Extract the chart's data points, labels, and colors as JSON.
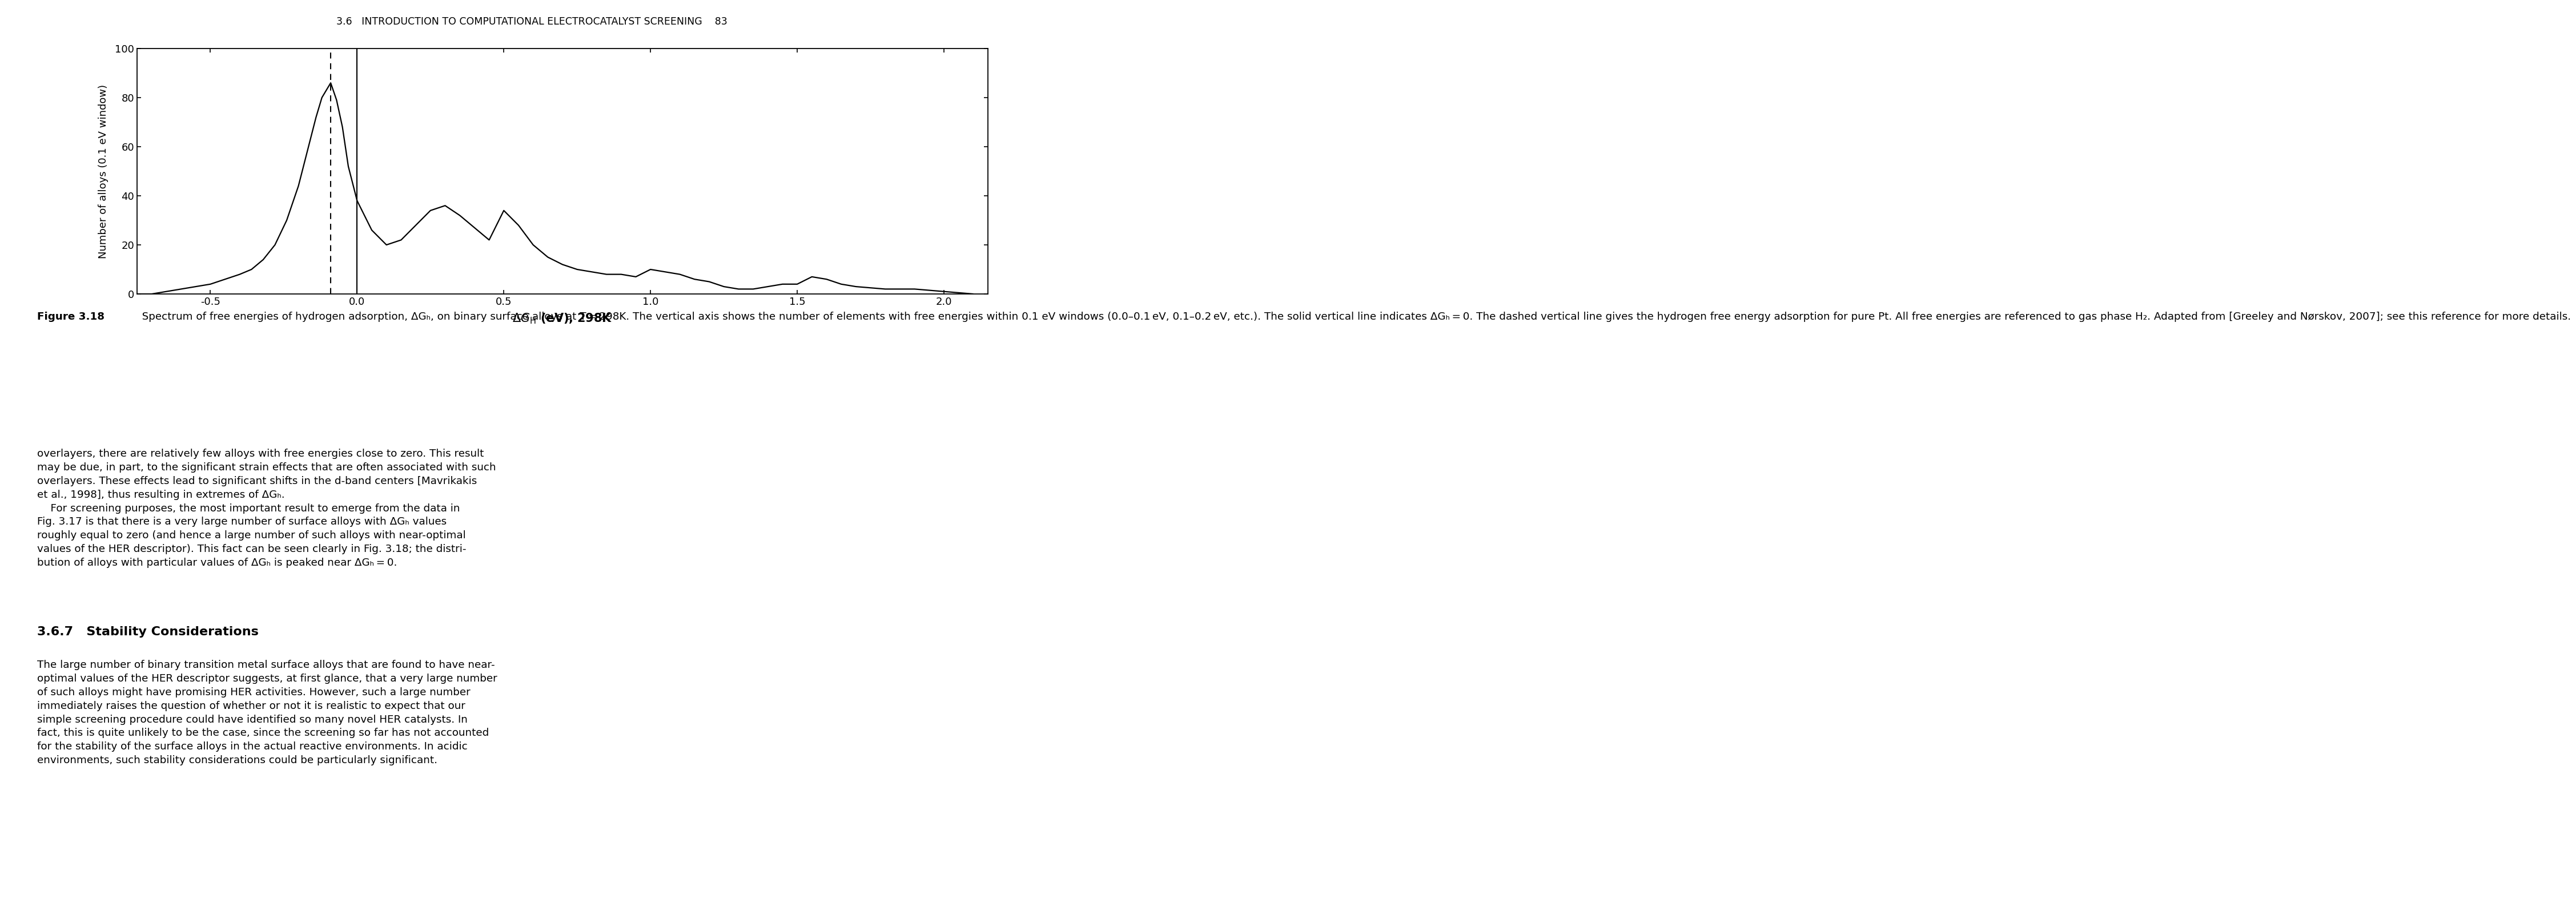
{
  "page_header": "3.6   INTRODUCTION TO COMPUTATIONAL ELECTROCATALYST SCREENING    83",
  "xlabel": "ΔG_H (eV), 298K",
  "ylabel": "Number of alloys (0.1 eV window)",
  "xlim": [
    -0.75,
    2.15
  ],
  "ylim": [
    0,
    100
  ],
  "xticks": [
    -0.5,
    0.0,
    0.5,
    1.0,
    1.5,
    2.0
  ],
  "xtick_labels": [
    "-0.5",
    "0.0",
    "0.5",
    "1.0",
    "1.5",
    "2.0"
  ],
  "yticks": [
    0,
    20,
    40,
    60,
    80,
    100
  ],
  "ytick_labels": [
    "0",
    "20",
    "40",
    "60",
    "80",
    "100"
  ],
  "solid_vline_x": 0.0,
  "dashed_vline_x": -0.09,
  "curve_x": [
    -0.75,
    -0.7,
    -0.65,
    -0.6,
    -0.55,
    -0.5,
    -0.45,
    -0.4,
    -0.36,
    -0.32,
    -0.28,
    -0.24,
    -0.2,
    -0.17,
    -0.14,
    -0.12,
    -0.1,
    -0.09,
    -0.07,
    -0.05,
    -0.03,
    0.0,
    0.05,
    0.1,
    0.15,
    0.2,
    0.25,
    0.3,
    0.35,
    0.4,
    0.45,
    0.5,
    0.55,
    0.6,
    0.65,
    0.7,
    0.75,
    0.8,
    0.85,
    0.9,
    0.95,
    1.0,
    1.05,
    1.1,
    1.15,
    1.2,
    1.25,
    1.3,
    1.35,
    1.4,
    1.45,
    1.5,
    1.55,
    1.6,
    1.65,
    1.7,
    1.8,
    1.9,
    2.0,
    2.1
  ],
  "curve_y": [
    0,
    0,
    1,
    2,
    3,
    4,
    6,
    8,
    10,
    14,
    20,
    30,
    44,
    58,
    72,
    80,
    84,
    86,
    79,
    68,
    52,
    38,
    26,
    20,
    22,
    28,
    34,
    36,
    32,
    27,
    22,
    34,
    28,
    20,
    15,
    12,
    10,
    9,
    8,
    8,
    7,
    10,
    9,
    8,
    6,
    5,
    3,
    2,
    2,
    3,
    4,
    4,
    7,
    6,
    4,
    3,
    2,
    2,
    1,
    0
  ],
  "caption_bold": "Figure 3.18",
  "caption_rest": "   Spectrum of free energies of hydrogen adsorption, ΔGₕ, on binary surface alloys at T = 298K. The vertical axis shows the number of elements with free energies within 0.1 eV windows (0.0–0.1 eV, 0.1–0.2 eV, etc.). The solid vertical line indicates ΔGₕ = 0. The dashed vertical line gives the hydrogen free energy adsorption for pure Pt. All free energies are referenced to gas phase H₂. Adapted from [Greeley and Nørskov, 2007]; see this reference for more details.",
  "body_before_lines": [
    "overlayers, there are relatively few alloys with free energies close to zero. This result",
    "may be due, in part, to the significant strain effects that are often associated with such",
    "overlayers. These effects lead to significant shifts in the d-band centers [Mavrikakis",
    "et al., 1998], thus resulting in extremes of ΔGₕ.",
    "    For screening purposes, the most important result to emerge from the data in",
    "Fig. 3.17 is that there is a very large number of surface alloys with ΔGₕ values",
    "roughly equal to zero (and hence a large number of such alloys with near-optimal",
    "values of the HER descriptor). This fact can be seen clearly in Fig. 3.18; the distri-",
    "bution of alloys with particular values of ΔGₕ is peaked near ΔGₕ = 0."
  ],
  "section_header": "3.6.7   Stability Considerations",
  "body_after_lines": [
    "The large number of binary transition metal surface alloys that are found to have near-",
    "optimal values of the HER descriptor suggests, at first glance, that a very large number",
    "of such alloys might have promising HER activities. However, such a large number",
    "immediately raises the question of whether or not it is realistic to expect that our",
    "simple screening procedure could have identified so many novel HER catalysts. In",
    "fact, this is quite unlikely to be the case, since the screening so far has not accounted",
    "for the stability of the surface alloys in the actual reactive environments. In acidic",
    "environments, such stability considerations could be particularly significant."
  ],
  "bg": "#ffffff",
  "fg": "#000000"
}
